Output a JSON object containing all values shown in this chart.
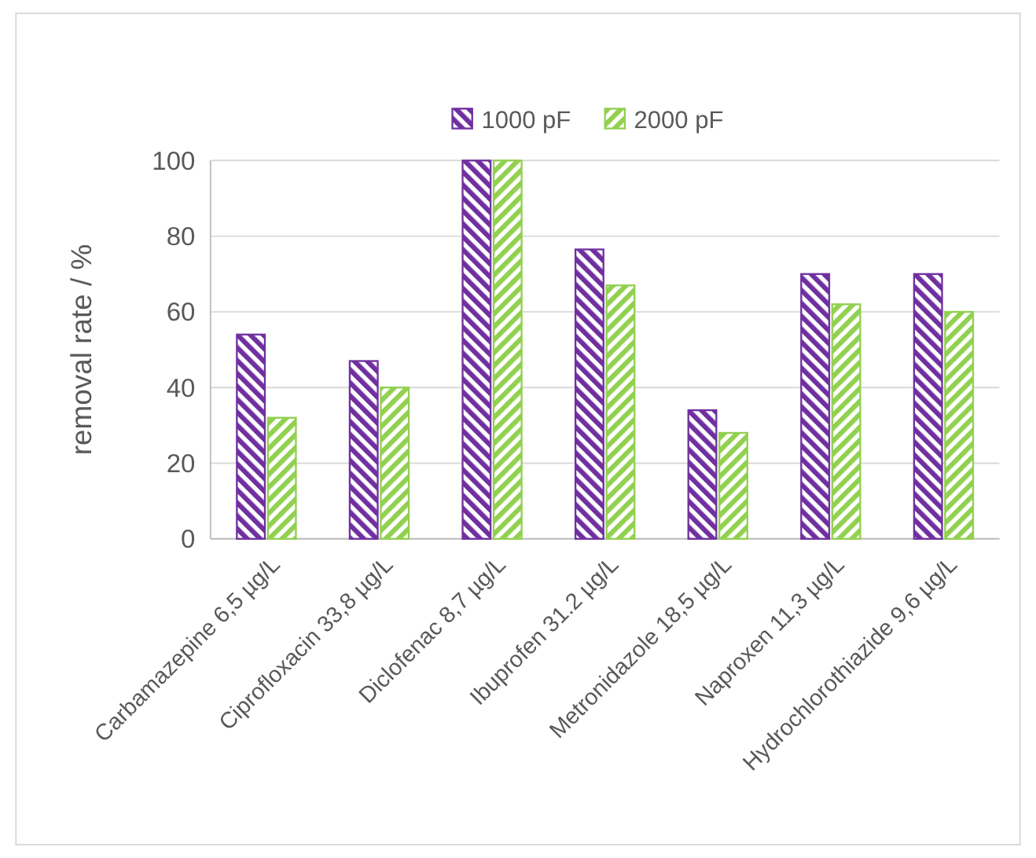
{
  "chart_data": {
    "type": "bar",
    "ylabel": "removal rate / %",
    "categories": [
      "Carbamazepine 6,5 µg/L",
      "Ciprofloxacin 33,8 µg/L",
      "Diclofenac 8,7 µg/L",
      "Ibuprofen 31.2 µg/L",
      "Metronidazole 18,5 µg/L",
      "Naproxen 11,3 µg/L",
      "Hydrochlorothiazide 9,6 µg/L"
    ],
    "series": [
      {
        "name": "1000 pF",
        "color": "#7030a0",
        "values": [
          54,
          47,
          100,
          76.5,
          34,
          70,
          70
        ]
      },
      {
        "name": "2000 pF",
        "color": "#92d050",
        "values": [
          32,
          40,
          100,
          67,
          28,
          62,
          60
        ]
      }
    ],
    "ylim": [
      0,
      100
    ],
    "yticks": [
      0,
      20,
      40,
      60,
      80,
      100
    ],
    "grid": "y",
    "legend": "top"
  }
}
